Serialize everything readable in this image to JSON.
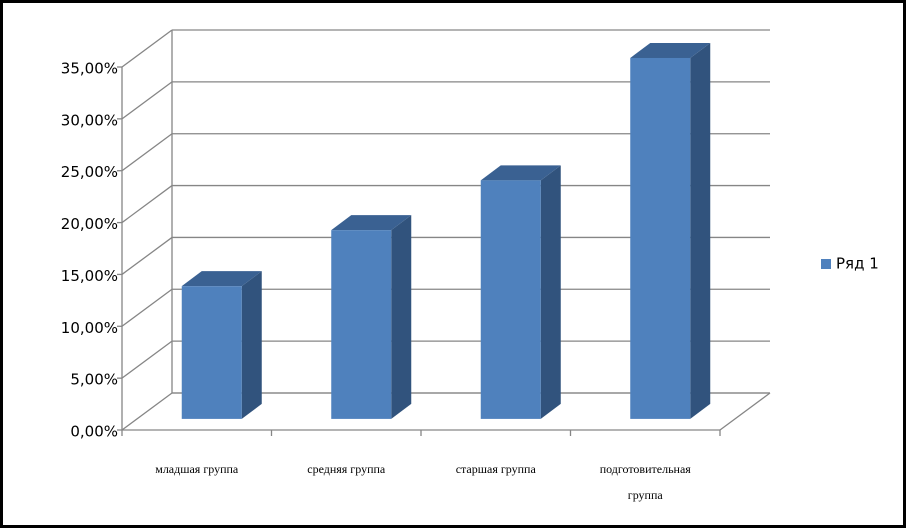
{
  "chart_data": {
    "type": "bar3d",
    "categories": [
      "младшая группа",
      "средняя группа",
      "старшая группа",
      "подготовительная группа"
    ],
    "series": [
      {
        "name": "Ряд 1",
        "color": "#4f81bd",
        "values": [
          12.8,
          18.2,
          23.0,
          34.8
        ]
      }
    ],
    "ylim": [
      0,
      35
    ],
    "yticks": [
      {
        "value": 0,
        "label": "0,00%"
      },
      {
        "value": 5,
        "label": "5,00%"
      },
      {
        "value": 10,
        "label": "10,00%"
      },
      {
        "value": 15,
        "label": "15,00%"
      },
      {
        "value": 20,
        "label": "20,00%"
      },
      {
        "value": 25,
        "label": "25,00%"
      },
      {
        "value": 30,
        "label": "30,00%"
      },
      {
        "value": 35,
        "label": "35,00%"
      }
    ],
    "grid": true,
    "legend": "right"
  }
}
